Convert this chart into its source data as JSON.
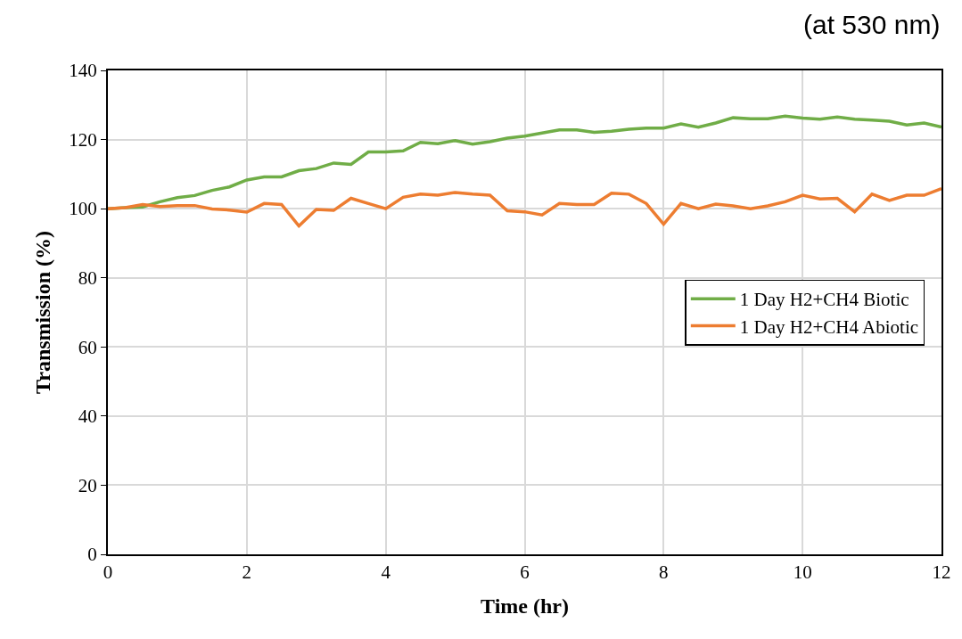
{
  "chart_data": {
    "type": "line",
    "xlabel": "Time (hr)",
    "ylabel": "Transmission (%)",
    "annotations": [
      "(at 530 nm)"
    ],
    "x": [
      0,
      0.25,
      0.5,
      0.75,
      1,
      1.25,
      1.5,
      1.75,
      2,
      2.25,
      2.5,
      2.75,
      3,
      3.25,
      3.5,
      3.75,
      4,
      4.25,
      4.5,
      4.75,
      5,
      5.25,
      5.5,
      5.75,
      6,
      6.25,
      6.5,
      6.75,
      7,
      7.25,
      7.5,
      7.75,
      8,
      8.25,
      8.5,
      8.75,
      9,
      9.25,
      9.5,
      9.75,
      10,
      10.25,
      10.5,
      10.75,
      11,
      11.25,
      11.5,
      11.75,
      12
    ],
    "series": [
      {
        "name": "1 Day H2+CH4 Biotic",
        "color": "#70ad47",
        "values": [
          100,
          100.3,
          100.5,
          102,
          103.2,
          103.8,
          105.3,
          106.3,
          108.3,
          109.2,
          109.2,
          111,
          111.6,
          113.2,
          112.8,
          116.4,
          116.4,
          116.7,
          119.2,
          118.8,
          119.7,
          118.7,
          119.4,
          120.4,
          121,
          121.9,
          122.8,
          122.8,
          122.1,
          122.4,
          123,
          123.3,
          123.3,
          124.5,
          123.6,
          124.8,
          126.3,
          126,
          126,
          126.8,
          126.2,
          125.9,
          126.5,
          125.9,
          125.6,
          125.3,
          124.2,
          124.8,
          123.6
        ]
      },
      {
        "name": "1 Day H2+CH4 Abiotic",
        "color": "#ed7d31",
        "values": [
          100,
          100.3,
          101.2,
          100.6,
          100.9,
          100.9,
          99.9,
          99.6,
          99,
          101.5,
          101.2,
          95,
          99.8,
          99.5,
          103,
          101.5,
          100,
          103.3,
          104.2,
          103.9,
          104.7,
          104.2,
          103.9,
          99.4,
          99.1,
          98.2,
          101.5,
          101.2,
          101.2,
          104.5,
          104.2,
          101.5,
          95.5,
          101.5,
          100,
          101.3,
          100.8,
          100,
          100.8,
          102,
          103.9,
          102.8,
          103,
          99.1,
          104.2,
          102.4,
          103.9,
          103.9,
          105.8
        ]
      }
    ],
    "xlim": [
      0,
      12
    ],
    "xticks": [
      0,
      2,
      4,
      6,
      8,
      10,
      12
    ],
    "ylim": [
      0,
      140
    ],
    "yticks": [
      0,
      20,
      40,
      60,
      80,
      100,
      120,
      140
    ],
    "grid": true,
    "legend": "center right",
    "line_style": "solid"
  }
}
